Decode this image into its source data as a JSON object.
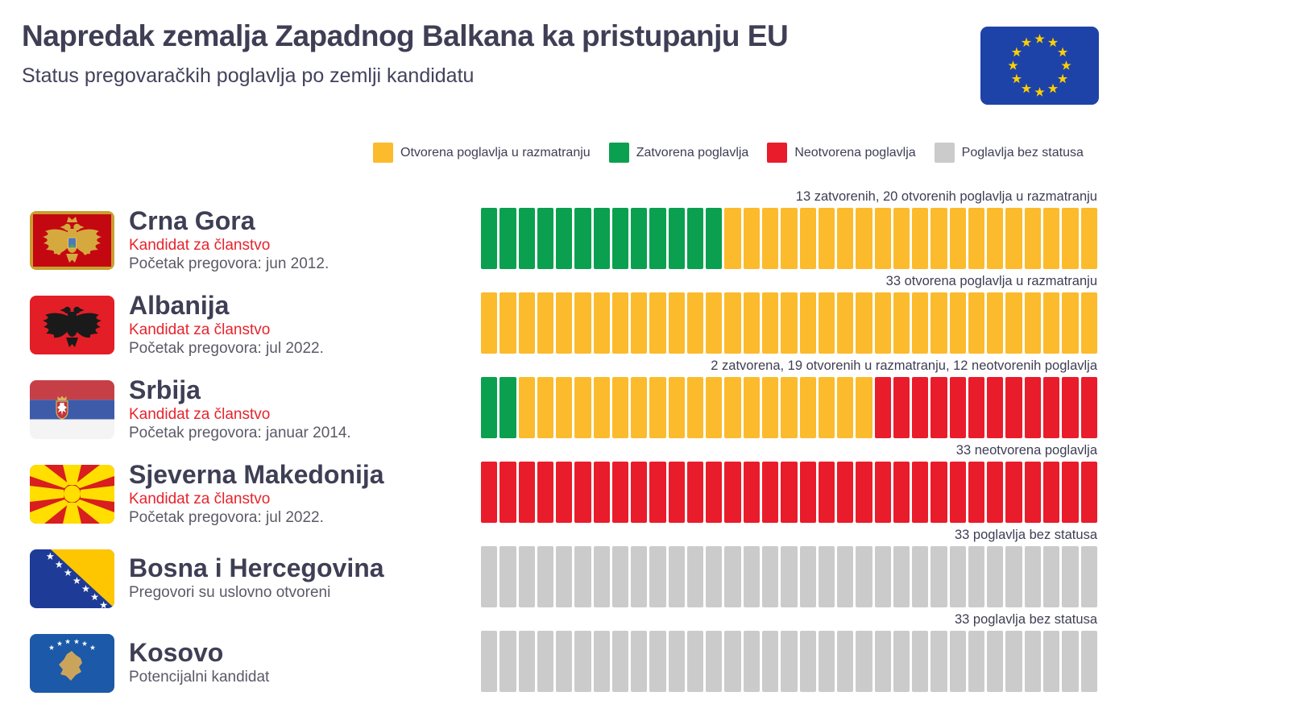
{
  "header": {
    "title": "Napredak zemalja Zapadnog Balkana ka pristupanju EU",
    "subtitle": "Status pregovaračkih poglavlja po zemlji kandidatu",
    "eu_flag_icon": "eu-flag"
  },
  "colors": {
    "open": "#FBBB2C",
    "closed": "#0AA04F",
    "unopened": "#E91C2B",
    "no_status": "#CBCBCB",
    "accent_red": "#E6242D",
    "text_dark": "#3E3E55",
    "text_gray": "#5A5A68",
    "eu_blue": "#1E43A8",
    "eu_star_gold": "#FFCF00"
  },
  "legend": [
    {
      "key": "open",
      "label": "Otvorena poglavlja u razmatranju"
    },
    {
      "key": "closed",
      "label": "Zatvorena poglavlja"
    },
    {
      "key": "unopened",
      "label": "Neotvorena poglavlja"
    },
    {
      "key": "no_status",
      "label": "Poglavlja bez statusa"
    }
  ],
  "countries": [
    {
      "name": "Crna Gora",
      "flag_icon": "montenegro-flag",
      "status": "Kandidat za članstvo",
      "detail": "Početak pregovora: jun 2012.",
      "annotation": "13 zatvorenih, 20 otvorenih poglavlja u razmatranju",
      "segments": [
        {
          "color_key": "closed",
          "count": 13
        },
        {
          "color_key": "open",
          "count": 20
        }
      ]
    },
    {
      "name": "Albanija",
      "flag_icon": "albania-flag",
      "status": "Kandidat za članstvo",
      "detail": "Početak pregovora: jul 2022.",
      "annotation": "33 otvorena poglavlja u razmatranju",
      "segments": [
        {
          "color_key": "open",
          "count": 33
        }
      ]
    },
    {
      "name": "Srbija",
      "flag_icon": "serbia-flag",
      "status": "Kandidat za članstvo",
      "detail": "Početak pregovora: januar 2014.",
      "annotation": "2 zatvorena, 19 otvorenih u razmatranju, 12 neotvorenih poglavlja",
      "segments": [
        {
          "color_key": "closed",
          "count": 2
        },
        {
          "color_key": "open",
          "count": 19
        },
        {
          "color_key": "unopened",
          "count": 12
        }
      ]
    },
    {
      "name": "Sjeverna Makedonija",
      "flag_icon": "north-macedonia-flag",
      "status": "Kandidat za članstvo",
      "detail": "Početak pregovora: jul 2022.",
      "annotation": "33 neotvorena poglavlja",
      "segments": [
        {
          "color_key": "unopened",
          "count": 33
        }
      ]
    },
    {
      "name": "Bosna i Hercegovina",
      "flag_icon": "bosnia-herzegovina-flag",
      "status": "Pregovori su uslovno otvoreni",
      "annotation": "33 poglavlja bez statusa",
      "segments": [
        {
          "color_key": "no_status",
          "count": 33
        }
      ]
    },
    {
      "name": "Kosovo",
      "flag_icon": "kosovo-flag",
      "status": "Potencijalni kandidat",
      "annotation": "33 poglavlja bez statusa",
      "segments": [
        {
          "color_key": "no_status",
          "count": 33
        }
      ]
    }
  ],
  "chart_data": {
    "type": "bar",
    "stacked": true,
    "orientation": "horizontal",
    "unit": "pregovaračka poglavlja",
    "total_per_country": 33,
    "title": "Napredak zemalja Zapadnog Balkana ka pristupanju EU",
    "subtitle": "Status pregovaračkih poglavlja po zemlji kandidatu",
    "categories": [
      "Crna Gora",
      "Albanija",
      "Srbija",
      "Sjeverna Makedonija",
      "Bosna i Hercegovina",
      "Kosovo"
    ],
    "series": [
      {
        "name": "Zatvorena poglavlja",
        "color": "#0AA04F",
        "values": [
          13,
          0,
          2,
          0,
          0,
          0
        ]
      },
      {
        "name": "Otvorena poglavlja u razmatranju",
        "color": "#FBBB2C",
        "values": [
          20,
          33,
          19,
          0,
          0,
          0
        ]
      },
      {
        "name": "Neotvorena poglavlja",
        "color": "#E91C2B",
        "values": [
          0,
          0,
          12,
          33,
          0,
          0
        ]
      },
      {
        "name": "Poglavlja bez statusa",
        "color": "#CBCBCB",
        "values": [
          0,
          0,
          0,
          0,
          33,
          33
        ]
      }
    ],
    "annotations": [
      "13 zatvorenih, 20 otvorenih poglavlja u razmatranju",
      "33 otvorena poglavlja u razmatranju",
      "2 zatvorena, 19 otvorenih u razmatranju, 12 neotvorenih poglavlja",
      "33 neotvorena poglavlja",
      "33 poglavlja bez statusa",
      "33 poglavlja bez statusa"
    ],
    "legend_position": "top",
    "grid": false,
    "xlim": [
      0,
      33
    ]
  }
}
